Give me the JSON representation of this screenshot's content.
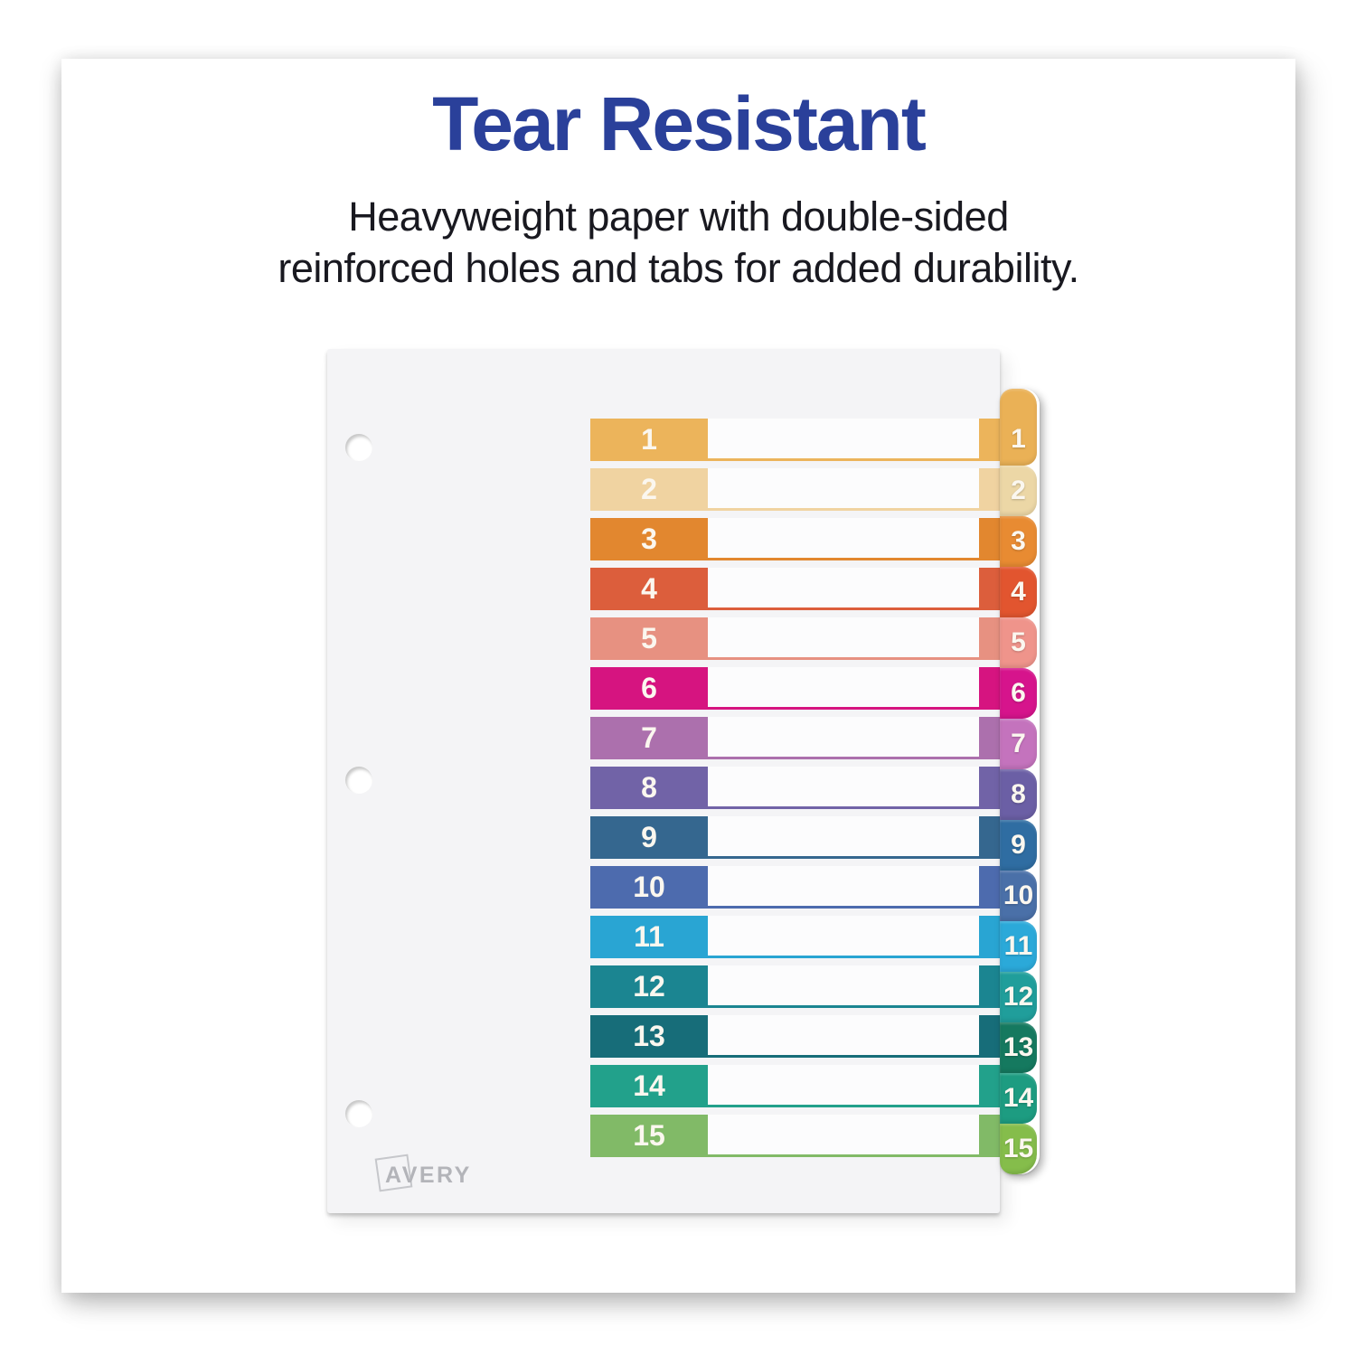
{
  "header": {
    "title": "Tear Resistant",
    "subtitle_line1": "Heavyweight paper with double-sided",
    "subtitle_line2": "reinforced holes and tabs for added durability."
  },
  "brand": {
    "logo_text": "AVERY"
  },
  "colors": {
    "title_blue": "#2a409a",
    "text_dark": "#191920",
    "sheet_bg": "#f4f4f6",
    "logo_gray": "#b3b4b9"
  },
  "divider": {
    "hole_count": 3,
    "rows": [
      {
        "label": "1",
        "block": "#ecb45b",
        "tab": "#eab156"
      },
      {
        "label": "2",
        "block": "#f0d3a1",
        "tab": "#ecd7a6"
      },
      {
        "label": "3",
        "block": "#e2872f",
        "tab": "#e88b32"
      },
      {
        "label": "4",
        "block": "#dc5e3c",
        "tab": "#e2552f"
      },
      {
        "label": "5",
        "block": "#e79181",
        "tab": "#ef948b"
      },
      {
        "label": "6",
        "block": "#d61480",
        "tab": "#d6148c"
      },
      {
        "label": "7",
        "block": "#ac70ad",
        "tab": "#c473bd"
      },
      {
        "label": "8",
        "block": "#7163a7",
        "tab": "#6b5fa5"
      },
      {
        "label": "9",
        "block": "#35678f",
        "tab": "#2f6da2"
      },
      {
        "label": "10",
        "block": "#4d6bae",
        "tab": "#4a70a8"
      },
      {
        "label": "11",
        "block": "#29a5d3",
        "tab": "#2ba9d9"
      },
      {
        "label": "12",
        "block": "#1b8591",
        "tab": "#209e9b"
      },
      {
        "label": "13",
        "block": "#176d79",
        "tab": "#15795f"
      },
      {
        "label": "14",
        "block": "#22a18b",
        "tab": "#1d9c81"
      },
      {
        "label": "15",
        "block": "#81ba67",
        "tab": "#85bd4b"
      }
    ]
  }
}
